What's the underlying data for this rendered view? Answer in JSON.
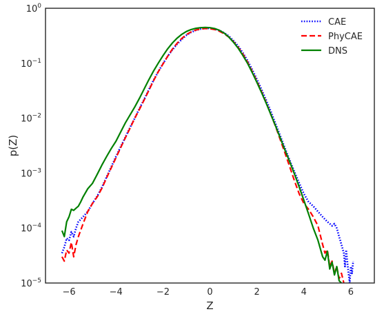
{
  "chart_data": {
    "type": "line",
    "title": "",
    "xlabel": "Z",
    "ylabel": "p(Z)",
    "xlim": [
      -7,
      7
    ],
    "ylim": [
      1e-05,
      1
    ],
    "y_scale": "log",
    "grid": false,
    "legend_position": "top-right",
    "x_ticks": [
      -6,
      -4,
      -2,
      0,
      2,
      4,
      6
    ],
    "x_tick_labels": [
      "−6",
      "−4",
      "−2",
      "0",
      "2",
      "4",
      "6"
    ],
    "y_ticks": [
      {
        "value": 1e-05,
        "base": "10",
        "exp": "−5"
      },
      {
        "value": 0.0001,
        "base": "10",
        "exp": "−4"
      },
      {
        "value": 0.001,
        "base": "10",
        "exp": "−3"
      },
      {
        "value": 0.01,
        "base": "10",
        "exp": "−2"
      },
      {
        "value": 0.1,
        "base": "10",
        "exp": "−1"
      },
      {
        "value": 1,
        "base": "10",
        "exp": "0"
      }
    ],
    "series": [
      {
        "name": "CAE",
        "color": "#0000ff",
        "style": "dotted",
        "x": [
          -6.3,
          -6.2,
          -6.1,
          -6.0,
          -5.9,
          -5.8,
          -5.7,
          -5.6,
          -5.4,
          -5.2,
          -5.0,
          -4.8,
          -4.6,
          -4.4,
          -4.2,
          -4.0,
          -3.8,
          -3.6,
          -3.4,
          -3.2,
          -3.0,
          -2.8,
          -2.6,
          -2.4,
          -2.2,
          -2.0,
          -1.8,
          -1.6,
          -1.4,
          -1.2,
          -1.0,
          -0.8,
          -0.6,
          -0.4,
          -0.2,
          0.0,
          0.2,
          0.4,
          0.6,
          0.8,
          1.0,
          1.2,
          1.4,
          1.6,
          1.8,
          2.0,
          2.2,
          2.4,
          2.6,
          2.8,
          3.0,
          3.2,
          3.4,
          3.6,
          3.8,
          4.0,
          4.2,
          4.4,
          4.6,
          4.8,
          5.0,
          5.1,
          5.2,
          5.3,
          5.4,
          5.5,
          5.6,
          5.7,
          5.75,
          5.8,
          5.9,
          5.95,
          6.0,
          6.05,
          6.1
        ],
        "y": [
          3.5e-05,
          4.5e-05,
          6.5e-05,
          6e-05,
          8.5e-05,
          7e-05,
          0.0001,
          0.00013,
          0.00016,
          0.0002,
          0.00028,
          0.00038,
          0.00055,
          0.00085,
          0.0013,
          0.002,
          0.003,
          0.0045,
          0.0068,
          0.01,
          0.015,
          0.022,
          0.033,
          0.049,
          0.07,
          0.098,
          0.133,
          0.175,
          0.222,
          0.272,
          0.323,
          0.365,
          0.398,
          0.42,
          0.432,
          0.432,
          0.42,
          0.395,
          0.358,
          0.313,
          0.258,
          0.205,
          0.155,
          0.112,
          0.077,
          0.051,
          0.033,
          0.021,
          0.013,
          0.0078,
          0.0047,
          0.0028,
          0.0017,
          0.00105,
          0.00066,
          0.00042,
          0.0003,
          0.00025,
          0.0002,
          0.00016,
          0.00013,
          0.00012,
          0.00011,
          0.00012,
          0.0001,
          7e-05,
          5e-05,
          3.5e-05,
          2e-05,
          4e-05,
          1.5e-05,
          1e-05,
          2e-05,
          1.5e-05,
          2.5e-05
        ]
      },
      {
        "name": "PhyCAE",
        "color": "#ff0000",
        "style": "dashed",
        "x": [
          -6.3,
          -6.2,
          -6.1,
          -6.0,
          -5.9,
          -5.8,
          -5.7,
          -5.6,
          -5.4,
          -5.2,
          -5.0,
          -4.8,
          -4.6,
          -4.4,
          -4.2,
          -4.0,
          -3.8,
          -3.6,
          -3.4,
          -3.2,
          -3.0,
          -2.8,
          -2.6,
          -2.4,
          -2.2,
          -2.0,
          -1.8,
          -1.6,
          -1.4,
          -1.2,
          -1.0,
          -0.8,
          -0.6,
          -0.4,
          -0.2,
          0.0,
          0.2,
          0.4,
          0.6,
          0.8,
          1.0,
          1.2,
          1.4,
          1.6,
          1.8,
          2.0,
          2.2,
          2.4,
          2.6,
          2.8,
          3.0,
          3.2,
          3.4,
          3.6,
          3.8,
          4.0,
          4.2,
          4.4,
          4.6,
          4.8,
          4.9,
          5.0,
          5.1,
          5.2,
          5.3,
          5.4,
          5.5,
          5.6,
          5.7
        ],
        "y": [
          3e-05,
          2.5e-05,
          4e-05,
          3.5e-05,
          5.5e-05,
          3e-05,
          5e-05,
          7e-05,
          0.00012,
          0.0002,
          0.00028,
          0.00037,
          0.00053,
          0.00082,
          0.00125,
          0.0019,
          0.0029,
          0.0044,
          0.0066,
          0.01,
          0.0145,
          0.0215,
          0.032,
          0.048,
          0.07,
          0.097,
          0.134,
          0.18,
          0.23,
          0.282,
          0.332,
          0.372,
          0.402,
          0.42,
          0.428,
          0.425,
          0.41,
          0.383,
          0.345,
          0.3,
          0.247,
          0.195,
          0.147,
          0.105,
          0.071,
          0.047,
          0.03,
          0.019,
          0.0115,
          0.007,
          0.004,
          0.0023,
          0.0013,
          0.00072,
          0.00042,
          0.00028,
          0.00022,
          0.00016,
          0.00011,
          5e-05,
          3.5e-05,
          4e-05,
          2e-05,
          2.5e-05,
          1.5e-05,
          2e-05,
          1.2e-05,
          1.5e-05,
          1e-05
        ]
      },
      {
        "name": "DNS",
        "color": "#008000",
        "style": "solid",
        "x": [
          -6.3,
          -6.2,
          -6.1,
          -6.0,
          -5.9,
          -5.8,
          -5.7,
          -5.6,
          -5.5,
          -5.4,
          -5.2,
          -5.0,
          -4.8,
          -4.6,
          -4.4,
          -4.2,
          -4.0,
          -3.8,
          -3.6,
          -3.4,
          -3.2,
          -3.0,
          -2.8,
          -2.6,
          -2.4,
          -2.2,
          -2.0,
          -1.8,
          -1.6,
          -1.4,
          -1.2,
          -1.0,
          -0.8,
          -0.6,
          -0.4,
          -0.2,
          0.0,
          0.2,
          0.4,
          0.6,
          0.8,
          1.0,
          1.2,
          1.4,
          1.6,
          1.8,
          2.0,
          2.2,
          2.4,
          2.6,
          2.8,
          3.0,
          3.2,
          3.4,
          3.6,
          3.8,
          4.0,
          4.2,
          4.4,
          4.6,
          4.8,
          4.9,
          5.0,
          5.1,
          5.2,
          5.3,
          5.4,
          5.5,
          5.6
        ],
        "y": [
          9e-05,
          7e-05,
          0.00013,
          0.00016,
          0.00022,
          0.00021,
          0.00023,
          0.00025,
          0.0003,
          0.00037,
          0.00052,
          0.00065,
          0.00095,
          0.0014,
          0.002,
          0.0028,
          0.0038,
          0.0056,
          0.0082,
          0.0115,
          0.016,
          0.023,
          0.034,
          0.05,
          0.072,
          0.1,
          0.137,
          0.183,
          0.233,
          0.285,
          0.335,
          0.378,
          0.41,
          0.432,
          0.443,
          0.447,
          0.443,
          0.428,
          0.398,
          0.355,
          0.3,
          0.242,
          0.188,
          0.139,
          0.1,
          0.068,
          0.045,
          0.029,
          0.0185,
          0.0115,
          0.0071,
          0.0043,
          0.0026,
          0.0016,
          0.00096,
          0.00056,
          0.00032,
          0.00018,
          0.0001,
          6e-05,
          3e-05,
          2.6e-05,
          3.8e-05,
          1.8e-05,
          2.4e-05,
          1.4e-05,
          2e-05,
          1.1e-05,
          1e-05
        ]
      }
    ]
  }
}
